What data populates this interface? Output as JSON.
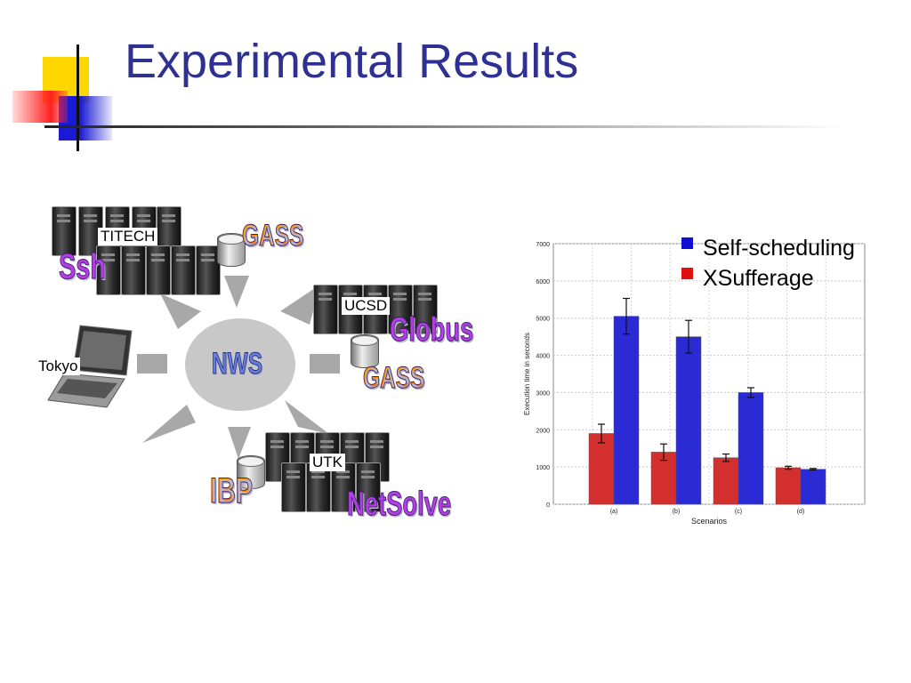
{
  "slide": {
    "title": "Experimental Results"
  },
  "diagram": {
    "center_label": "NWS",
    "sites": {
      "titech": "TITECH",
      "ucsd": "UCSD",
      "tokyo": "Tokyo",
      "utk": "UTK"
    },
    "wordart": {
      "gass_top": "GASS",
      "ssh": "Ssh",
      "globus": "Globus",
      "gass_right": "GASS",
      "ibp": "IBP",
      "netsolve": "NetSolve"
    }
  },
  "legend": {
    "items": [
      {
        "label": "Self-scheduling",
        "color": "#1010d0"
      },
      {
        "label": "XSufferage",
        "color": "#e01010"
      }
    ]
  },
  "chart_data": {
    "type": "bar",
    "categories": [
      "(a)",
      "(b)",
      "(c)",
      "(d)"
    ],
    "xlabel": "Scenarios",
    "ylabel": "Execution time in seconds",
    "ylim": [
      0,
      7000
    ],
    "yticks": [
      0,
      1000,
      2000,
      3000,
      4000,
      5000,
      6000,
      7000
    ],
    "grid": true,
    "series": [
      {
        "name": "XSufferage",
        "color": "#d32f2f",
        "values": [
          1900,
          1400,
          1250,
          980
        ],
        "error": [
          250,
          220,
          100,
          40
        ]
      },
      {
        "name": "Self-scheduling",
        "color": "#2b2bd6",
        "values": [
          5050,
          4500,
          3000,
          940
        ],
        "error": [
          480,
          440,
          130,
          20
        ]
      }
    ]
  }
}
